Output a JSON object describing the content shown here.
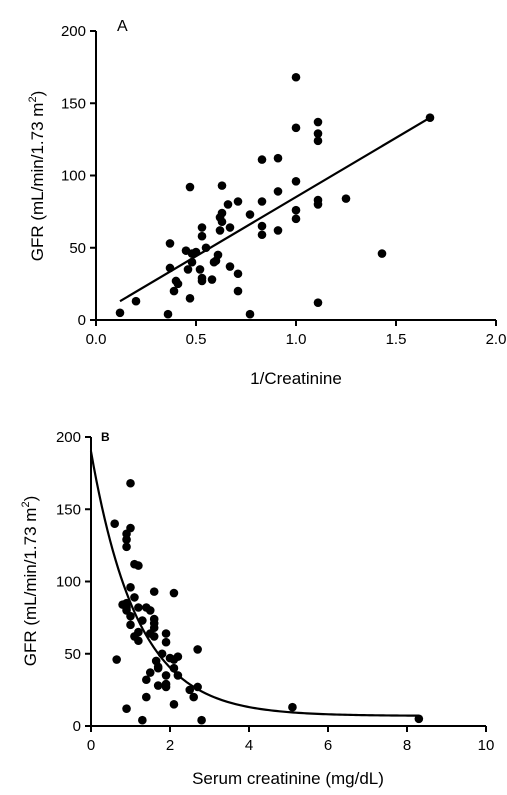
{
  "chart_data": [
    {
      "type": "scatter",
      "panel_label": "A",
      "xlabel": "1/Creatinine",
      "ylabel_main": "GFR (mL/min/1.73 m",
      "ylabel_sup": "2",
      "ylabel_end": ")",
      "xlim": [
        0,
        2
      ],
      "ylim": [
        0,
        200
      ],
      "xticks": [
        "0.0",
        "0.5",
        "1.0",
        "1.5",
        "2.0"
      ],
      "yticks": [
        "0",
        "50",
        "100",
        "150",
        "200"
      ],
      "points": [
        [
          0.12,
          5
        ],
        [
          0.2,
          13
        ],
        [
          0.36,
          4
        ],
        [
          0.37,
          36
        ],
        [
          0.37,
          53
        ],
        [
          0.39,
          20
        ],
        [
          0.4,
          27
        ],
        [
          0.41,
          25
        ],
        [
          0.45,
          48
        ],
        [
          0.46,
          35
        ],
        [
          0.47,
          92
        ],
        [
          0.47,
          15
        ],
        [
          0.48,
          46
        ],
        [
          0.48,
          40
        ],
        [
          0.5,
          47
        ],
        [
          0.52,
          35
        ],
        [
          0.53,
          29
        ],
        [
          0.53,
          27
        ],
        [
          0.53,
          58
        ],
        [
          0.53,
          64
        ],
        [
          0.55,
          50
        ],
        [
          0.58,
          28
        ],
        [
          0.59,
          40
        ],
        [
          0.6,
          41
        ],
        [
          0.61,
          45
        ],
        [
          0.62,
          62
        ],
        [
          0.62,
          71
        ],
        [
          0.63,
          68
        ],
        [
          0.63,
          93
        ],
        [
          0.63,
          74
        ],
        [
          0.66,
          80
        ],
        [
          0.67,
          37
        ],
        [
          0.67,
          64
        ],
        [
          0.71,
          82
        ],
        [
          0.71,
          32
        ],
        [
          0.71,
          20
        ],
        [
          0.77,
          4
        ],
        [
          0.77,
          73
        ],
        [
          0.83,
          65
        ],
        [
          0.83,
          59
        ],
        [
          0.83,
          82
        ],
        [
          0.83,
          111
        ],
        [
          0.91,
          62
        ],
        [
          0.91,
          89
        ],
        [
          0.91,
          112
        ],
        [
          1.0,
          168
        ],
        [
          1.0,
          133
        ],
        [
          1.0,
          96
        ],
        [
          1.0,
          76
        ],
        [
          1.0,
          70
        ],
        [
          1.11,
          137
        ],
        [
          1.11,
          129
        ],
        [
          1.11,
          124
        ],
        [
          1.11,
          83
        ],
        [
          1.11,
          80
        ],
        [
          1.11,
          12
        ],
        [
          1.25,
          84
        ],
        [
          1.43,
          46
        ],
        [
          1.67,
          140
        ]
      ],
      "fit": {
        "type": "linear",
        "x": [
          0.12,
          1.67
        ],
        "y": [
          13,
          140
        ]
      }
    },
    {
      "type": "scatter",
      "panel_label": "B",
      "xlabel": "Serum creatinine (mg/dL)",
      "ylabel_main": "GFR (mL/min/1.73 m",
      "ylabel_sup": "2",
      "ylabel_end": ")",
      "xlim": [
        0,
        10
      ],
      "ylim": [
        0,
        200
      ],
      "xticks": [
        "0",
        "2",
        "4",
        "6",
        "8",
        "10"
      ],
      "yticks": [
        "0",
        "50",
        "100",
        "150",
        "200"
      ],
      "points": [
        [
          0.6,
          140
        ],
        [
          0.65,
          46
        ],
        [
          0.8,
          84
        ],
        [
          0.9,
          85
        ],
        [
          0.9,
          133
        ],
        [
          0.9,
          129
        ],
        [
          0.9,
          124
        ],
        [
          0.9,
          80
        ],
        [
          0.9,
          82
        ],
        [
          0.9,
          12
        ],
        [
          1.0,
          168
        ],
        [
          1.0,
          137
        ],
        [
          1.0,
          96
        ],
        [
          1.0,
          76
        ],
        [
          1.0,
          70
        ],
        [
          1.1,
          89
        ],
        [
          1.1,
          112
        ],
        [
          1.1,
          62
        ],
        [
          1.2,
          111
        ],
        [
          1.2,
          82
        ],
        [
          1.2,
          65
        ],
        [
          1.2,
          59
        ],
        [
          1.3,
          73
        ],
        [
          1.3,
          4
        ],
        [
          1.4,
          82
        ],
        [
          1.4,
          32
        ],
        [
          1.4,
          20
        ],
        [
          1.5,
          37
        ],
        [
          1.5,
          64
        ],
        [
          1.5,
          80
        ],
        [
          1.6,
          93
        ],
        [
          1.6,
          74
        ],
        [
          1.6,
          68
        ],
        [
          1.6,
          71
        ],
        [
          1.6,
          62
        ],
        [
          1.65,
          45
        ],
        [
          1.7,
          41
        ],
        [
          1.7,
          40
        ],
        [
          1.7,
          28
        ],
        [
          1.8,
          50
        ],
        [
          1.9,
          58
        ],
        [
          1.9,
          64
        ],
        [
          1.9,
          27
        ],
        [
          1.9,
          29
        ],
        [
          1.9,
          35
        ],
        [
          2.0,
          47
        ],
        [
          2.1,
          40
        ],
        [
          2.1,
          92
        ],
        [
          2.1,
          15
        ],
        [
          2.1,
          46
        ],
        [
          2.2,
          48
        ],
        [
          2.2,
          35
        ],
        [
          2.5,
          25
        ],
        [
          2.6,
          20
        ],
        [
          2.7,
          27
        ],
        [
          2.7,
          53
        ],
        [
          2.8,
          4
        ],
        [
          5.1,
          13
        ],
        [
          8.3,
          5
        ]
      ],
      "fit": {
        "type": "exponential_decay",
        "y0": 190,
        "plateau": 7,
        "k": 0.85,
        "x_range": [
          0,
          8.3
        ]
      }
    }
  ]
}
